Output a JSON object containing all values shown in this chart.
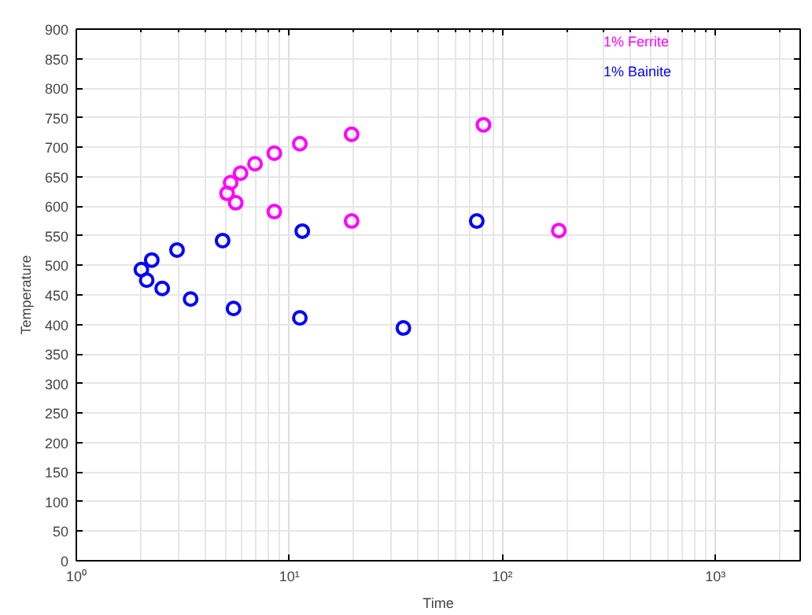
{
  "chart_data": {
    "type": "scatter",
    "xlabel": "Time",
    "ylabel": "Temperature",
    "log": "x",
    "grid": true,
    "marker": "circle",
    "legend": "top right",
    "xlim": [
      1,
      2500
    ],
    "xticks": [
      {
        "value": 1,
        "label": "10⁰"
      },
      {
        "value": 10,
        "label": "10¹"
      },
      {
        "value": 100,
        "label": "10²"
      },
      {
        "value": 1000,
        "label": "10³"
      }
    ],
    "ylim": [
      0,
      900
    ],
    "yticks": [
      0,
      50,
      100,
      150,
      200,
      250,
      300,
      350,
      400,
      450,
      500,
      550,
      600,
      650,
      700,
      750,
      800,
      850,
      900
    ],
    "series": [
      {
        "name": "1% Ferrite",
        "color": "#ff00ff",
        "x": [
          5.1,
          5.3,
          5.6,
          5.9,
          6.9,
          8.5,
          8.5,
          11.2,
          19.6,
          19.6,
          81.5,
          184
        ],
        "values": [
          622,
          640,
          606,
          656,
          672,
          690,
          591,
          706,
          722,
          575,
          738,
          559
        ]
      },
      {
        "name": "1% Bainite",
        "color": "#0000ff",
        "x": [
          2.02,
          2.14,
          2.26,
          2.53,
          2.97,
          3.44,
          4.86,
          5.47,
          11.2,
          11.5,
          34.3,
          75.8
        ],
        "values": [
          493,
          475,
          509,
          461,
          526,
          443,
          542,
          427,
          411,
          558,
          394,
          575
        ]
      }
    ]
  }
}
